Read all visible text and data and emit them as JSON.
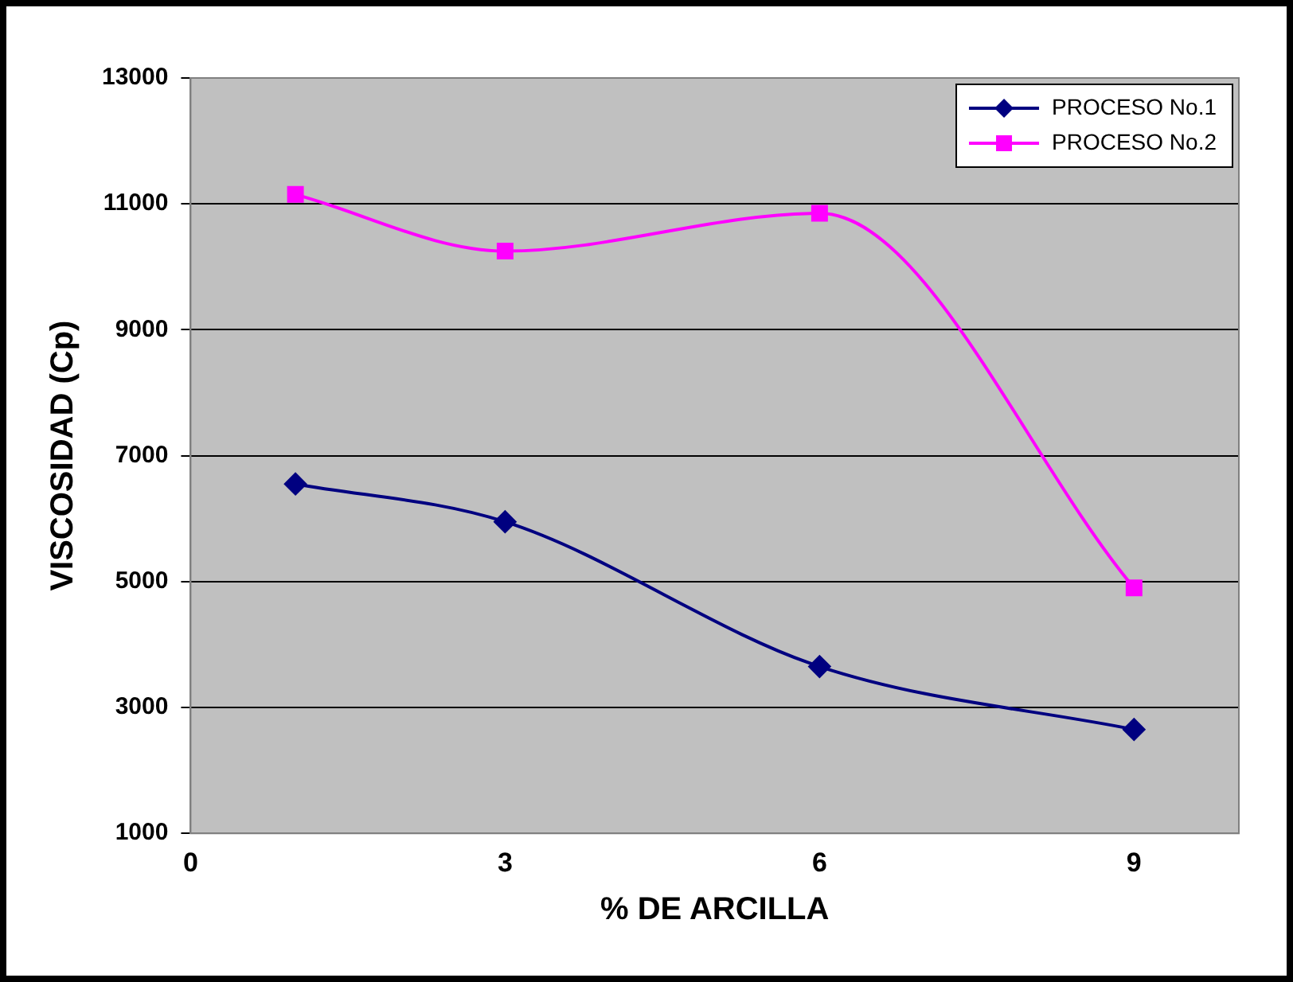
{
  "chart_data": {
    "type": "line",
    "xlabel": "% DE ARCILLA",
    "ylabel": "VISCOSIDAD (Cp)",
    "x": [
      1,
      3,
      6,
      9
    ],
    "xlim": [
      0,
      10
    ],
    "xticks": [
      0,
      3,
      6,
      9
    ],
    "ylim": [
      1000,
      13000
    ],
    "yticks": [
      1000,
      3000,
      5000,
      7000,
      9000,
      11000,
      13000
    ],
    "grid": "y",
    "legend": "top right",
    "series": [
      {
        "name": "PROCESO No.1",
        "color": "#000080",
        "marker": "diamond",
        "values": [
          6550,
          5950,
          3650,
          2650
        ]
      },
      {
        "name": "PROCESO No.2",
        "color": "#ff00ff",
        "marker": "square",
        "values": [
          11150,
          10250,
          10850,
          4900
        ]
      }
    ]
  }
}
